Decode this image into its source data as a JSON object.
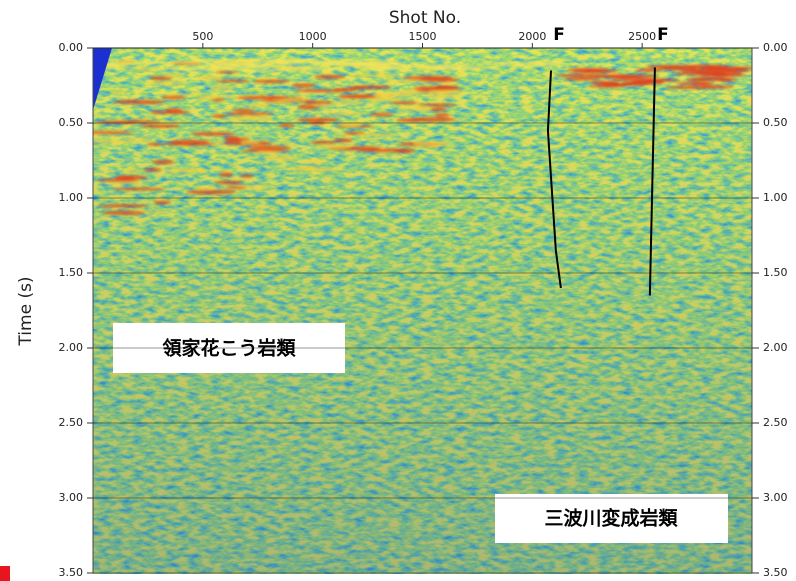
{
  "chart_data": {
    "type": "seismic",
    "xlabel": "Shot No.",
    "ylabel": "Time (s)",
    "xlim": [
      0,
      3000
    ],
    "xticks": [
      500,
      1000,
      1500,
      2000,
      2500
    ],
    "ylim": [
      0,
      3.5
    ],
    "invert_y": true,
    "yticks": [
      {
        "value": 0,
        "label": "0.00"
      },
      {
        "value": 0.5,
        "label": "0.50"
      },
      {
        "value": 1,
        "label": "1.00"
      },
      {
        "value": 1.5,
        "label": "1.50"
      },
      {
        "value": 2,
        "label": "2.00"
      },
      {
        "value": 2.5,
        "label": "2.50"
      },
      {
        "value": 3,
        "label": "3.00"
      },
      {
        "value": 3.5,
        "label": "3.50"
      }
    ],
    "right_axis": true,
    "faults": [
      {
        "label": "F",
        "x": [
          2085,
          2071,
          2107,
          2130
        ],
        "y": [
          0.15,
          0.55,
          1.35,
          1.6
        ]
      },
      {
        "label": "F",
        "x": [
          2558,
          2535
        ],
        "y": [
          0.13,
          1.65
        ]
      }
    ],
    "regions": [
      {
        "text": "領家花こう岩類"
      },
      {
        "text": "三波川変成岩類"
      }
    ]
  }
}
